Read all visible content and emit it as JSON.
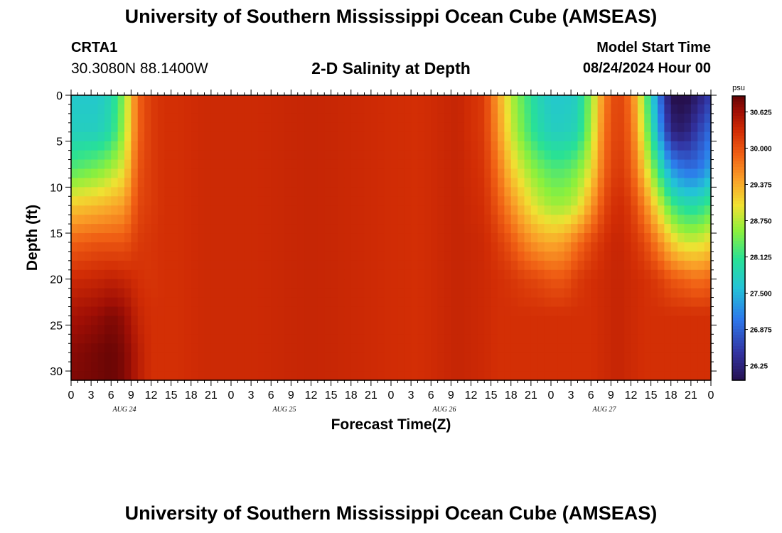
{
  "header": {
    "title": "University of Southern Mississippi Ocean Cube (AMSEAS)",
    "station": "CRTA1",
    "coords": "30.3080N  88.1400W",
    "chart_title": "2-D Salinity at Depth",
    "model_label": "Model Start Time",
    "model_value": "08/24/2024 Hour 00"
  },
  "footer": {
    "title": "University of Southern Mississippi Ocean Cube (AMSEAS)"
  },
  "colors": {
    "background": "#ffffff",
    "axis": "#000000"
  },
  "chart_data": {
    "type": "heatmap",
    "title": "2-D Salinity at Depth",
    "xlabel": "Forecast Time(Z)",
    "ylabel": "Depth (ft)",
    "x_tick_labels": [
      "0",
      "3",
      "6",
      "9",
      "12",
      "15",
      "18",
      "21",
      "0",
      "3",
      "6",
      "9",
      "12",
      "15",
      "18",
      "21",
      "0",
      "3",
      "6",
      "9",
      "12",
      "15",
      "18",
      "21",
      "0",
      "3",
      "6",
      "9",
      "12",
      "15",
      "18",
      "21",
      "0"
    ],
    "x_range_hours": [
      0,
      96
    ],
    "day_labels": [
      {
        "label": "AUG 24",
        "hour": 8
      },
      {
        "label": "AUG 25",
        "hour": 32
      },
      {
        "label": "AUG 26",
        "hour": 56
      },
      {
        "label": "AUG 27",
        "hour": 80
      }
    ],
    "y_ticks": [
      0,
      5,
      10,
      15,
      20,
      25,
      30
    ],
    "ylim": [
      0,
      31
    ],
    "colorbar": {
      "unit": "psu",
      "range": [
        26.0,
        30.9
      ],
      "tick_values": [
        30.625,
        30.0,
        29.375,
        28.75,
        28.125,
        27.5,
        26.875,
        26.25
      ],
      "tick_labels": [
        "30.625",
        "30.000",
        "29.375",
        "28.750",
        "28.125",
        "27.500",
        "26.875",
        "26.25"
      ]
    },
    "depths_ft": [
      0,
      4,
      8,
      12,
      16,
      20,
      24,
      28,
      31
    ],
    "times_hr": [
      0,
      4,
      6,
      8,
      10,
      12,
      14,
      16,
      20,
      28,
      36,
      44,
      52,
      58,
      62,
      64,
      66,
      68,
      70,
      72,
      74,
      76,
      78,
      80,
      82,
      84,
      86,
      88,
      90,
      92,
      94,
      96
    ],
    "salinity_psu": [
      [
        27.7,
        27.7,
        27.9,
        28.6,
        29.9,
        30.2,
        30.3,
        30.3,
        30.35,
        30.35,
        30.4,
        30.35,
        30.3,
        30.4,
        30.2,
        29.5,
        28.8,
        28.3,
        27.9,
        27.7,
        27.7,
        27.8,
        28.6,
        29.7,
        30.2,
        29.8,
        28.6,
        27.2,
        26.0,
        25.9,
        26.2,
        26.6
      ],
      [
        27.8,
        27.8,
        28.0,
        28.7,
        29.9,
        30.2,
        30.3,
        30.3,
        30.35,
        30.35,
        30.4,
        30.35,
        30.3,
        30.4,
        30.2,
        29.6,
        28.9,
        28.4,
        28.0,
        27.8,
        27.8,
        27.9,
        28.7,
        29.8,
        30.2,
        29.9,
        28.8,
        27.5,
        26.3,
        26.2,
        26.6,
        27.0
      ],
      [
        28.3,
        28.5,
        28.7,
        29.0,
        30.0,
        30.2,
        30.3,
        30.3,
        30.35,
        30.35,
        30.4,
        30.35,
        30.3,
        30.4,
        30.25,
        29.8,
        29.2,
        28.8,
        28.5,
        28.3,
        28.3,
        28.5,
        29.0,
        29.9,
        30.25,
        30.0,
        29.2,
        28.2,
        27.3,
        27.0,
        27.0,
        27.4
      ],
      [
        29.2,
        29.3,
        29.4,
        29.5,
        30.1,
        30.2,
        30.3,
        30.3,
        30.35,
        30.35,
        30.4,
        30.35,
        30.3,
        30.4,
        30.3,
        30.0,
        29.6,
        29.2,
        28.9,
        28.7,
        28.7,
        28.9,
        29.5,
        30.1,
        30.35,
        30.2,
        29.7,
        29.0,
        28.3,
        28.0,
        28.0,
        28.3
      ],
      [
        29.9,
        30.0,
        30.0,
        30.0,
        30.2,
        30.25,
        30.3,
        30.3,
        30.35,
        30.35,
        30.4,
        30.35,
        30.3,
        30.4,
        30.35,
        30.2,
        30.0,
        29.7,
        29.5,
        29.4,
        29.5,
        29.8,
        30.1,
        30.3,
        30.4,
        30.3,
        30.1,
        29.7,
        29.2,
        28.9,
        28.9,
        29.1
      ],
      [
        30.35,
        30.4,
        30.45,
        30.4,
        30.3,
        30.25,
        30.3,
        30.3,
        30.35,
        30.35,
        30.4,
        30.35,
        30.3,
        30.4,
        30.35,
        30.3,
        30.25,
        30.15,
        30.1,
        30.0,
        30.0,
        30.2,
        30.3,
        30.35,
        30.4,
        30.35,
        30.3,
        30.2,
        30.0,
        29.9,
        29.8,
        29.9
      ],
      [
        30.6,
        30.7,
        30.8,
        30.7,
        30.4,
        30.3,
        30.3,
        30.3,
        30.35,
        30.35,
        30.4,
        30.35,
        30.3,
        30.4,
        30.35,
        30.3,
        30.3,
        30.3,
        30.3,
        30.3,
        30.3,
        30.3,
        30.3,
        30.35,
        30.4,
        30.35,
        30.3,
        30.3,
        30.3,
        30.3,
        30.3,
        30.3
      ],
      [
        30.75,
        30.85,
        30.9,
        30.8,
        30.5,
        30.3,
        30.3,
        30.3,
        30.35,
        30.35,
        30.4,
        30.35,
        30.3,
        30.4,
        30.35,
        30.3,
        30.3,
        30.3,
        30.3,
        30.3,
        30.3,
        30.3,
        30.3,
        30.35,
        30.4,
        30.35,
        30.3,
        30.3,
        30.3,
        30.3,
        30.3,
        30.3
      ],
      [
        30.8,
        30.85,
        30.9,
        30.8,
        30.5,
        30.3,
        30.3,
        30.3,
        30.35,
        30.35,
        30.4,
        30.35,
        30.3,
        30.4,
        30.35,
        30.3,
        30.3,
        30.3,
        30.3,
        30.3,
        30.3,
        30.3,
        30.3,
        30.35,
        30.4,
        30.35,
        30.3,
        30.3,
        30.3,
        30.3,
        30.3,
        30.3
      ]
    ]
  }
}
